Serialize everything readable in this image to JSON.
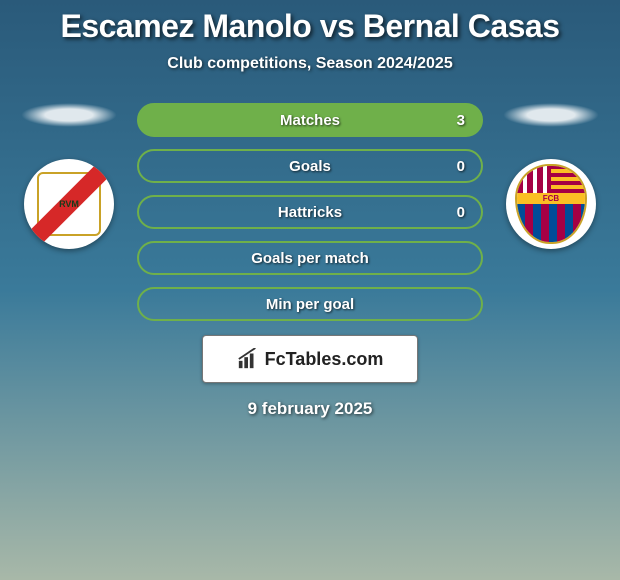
{
  "title": "Escamez Manolo vs Bernal Casas",
  "subtitle": "Club competitions, Season 2024/2025",
  "colors": {
    "pill_border": "#6fb04a",
    "pill_bg": "rgba(0,0,0,0)",
    "pill_highlight_bg": "#6fb04a",
    "text_shadow": "rgba(0,0,0,0.7)",
    "brand_bg": "#ffffff",
    "brand_text": "#222222"
  },
  "stats": [
    {
      "label": "Matches",
      "right_value": "3",
      "highlighted": true
    },
    {
      "label": "Goals",
      "right_value": "0",
      "highlighted": false
    },
    {
      "label": "Hattricks",
      "right_value": "0",
      "highlighted": false
    },
    {
      "label": "Goals per match",
      "right_value": "",
      "highlighted": false
    },
    {
      "label": "Min per goal",
      "right_value": "",
      "highlighted": false
    }
  ],
  "brand": "FcTables.com",
  "date": "9 february 2025",
  "left_club": "Rayo Vallecano",
  "right_club": "FC Barcelona"
}
